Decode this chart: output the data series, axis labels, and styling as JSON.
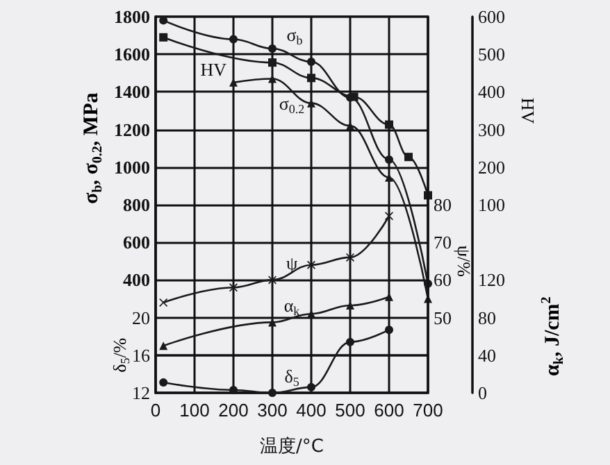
{
  "chart_data": [
    {
      "type": "line",
      "ylabel": "σ$_{b}$, σ$_{0.2}$, MPa",
      "y2label": "HV",
      "tick_labels": "y",
      "xlim": [
        0,
        700
      ],
      "xticks": [
        0,
        100,
        200,
        300,
        400,
        500,
        600,
        700
      ],
      "ylim": [
        -200,
        1800
      ],
      "yticks": [
        400,
        600,
        800,
        1000,
        1200,
        1400,
        1600,
        1800
      ],
      "y2lim": [
        -400,
        600
      ],
      "y2ticks": [
        100,
        200,
        300,
        400,
        500,
        600
      ],
      "grid": true,
      "series": [
        {
          "name": "σ$_{b}$",
          "color": "#1a1a1a",
          "marker": "circle",
          "x": [
            20,
            200,
            300,
            400,
            500,
            600,
            700
          ],
          "values": [
            1780,
            1680,
            1630,
            1560,
            1370,
            1040,
            380
          ]
        },
        {
          "name": "HV",
          "color": "#1a1a1a",
          "marker": "square",
          "axis": "y2",
          "x": [
            20,
            300,
            400,
            510,
            600,
            650,
            700
          ],
          "values": [
            545,
            478,
            437,
            387,
            313,
            227,
            125
          ]
        },
        {
          "name": "σ$_{0.2}$",
          "color": "#1a1a1a",
          "marker": "triangle",
          "x": [
            200,
            300,
            400,
            500,
            600,
            700
          ],
          "values": [
            1450,
            1470,
            1340,
            1220,
            945,
            300
          ]
        }
      ]
    },
    {
      "type": "line",
      "xlabel": "温度/°C",
      "ylabel": "δ$_{5}$/%",
      "y2label": "ψ/%",
      "y3label": "α$_{k}$, J/cm$^{2}$",
      "xlim": [
        0,
        700
      ],
      "xticks": [
        0,
        100,
        200,
        300,
        400,
        500,
        600,
        700
      ],
      "ylim": [
        12,
        52
      ],
      "yticks": [
        12,
        16,
        20
      ],
      "y2lim": [
        30,
        130
      ],
      "y2ticks": [
        50,
        60,
        70,
        80
      ],
      "y3lim": [
        0,
        400
      ],
      "y3ticks": [
        0,
        40,
        80,
        120
      ],
      "series": [
        {
          "name": "ψ",
          "color": "#1a1a1a",
          "marker": "cross",
          "axis": "y2",
          "x": [
            20,
            200,
            300,
            400,
            500,
            600
          ],
          "values": [
            54,
            58,
            60,
            64,
            66,
            77
          ]
        },
        {
          "name": "α$_{k}$",
          "color": "#1a1a1a",
          "marker": "triangle",
          "axis": "y3",
          "x": [
            20,
            300,
            400,
            500,
            600
          ],
          "values": [
            50,
            75,
            84,
            93,
            102
          ]
        },
        {
          "name": "δ$_{5}$",
          "color": "#1a1a1a",
          "marker": "circle",
          "x": [
            20,
            200,
            300,
            400,
            500,
            600
          ],
          "values": [
            13.1,
            12.3,
            12.0,
            12.6,
            17.4,
            18.7
          ]
        }
      ]
    }
  ]
}
